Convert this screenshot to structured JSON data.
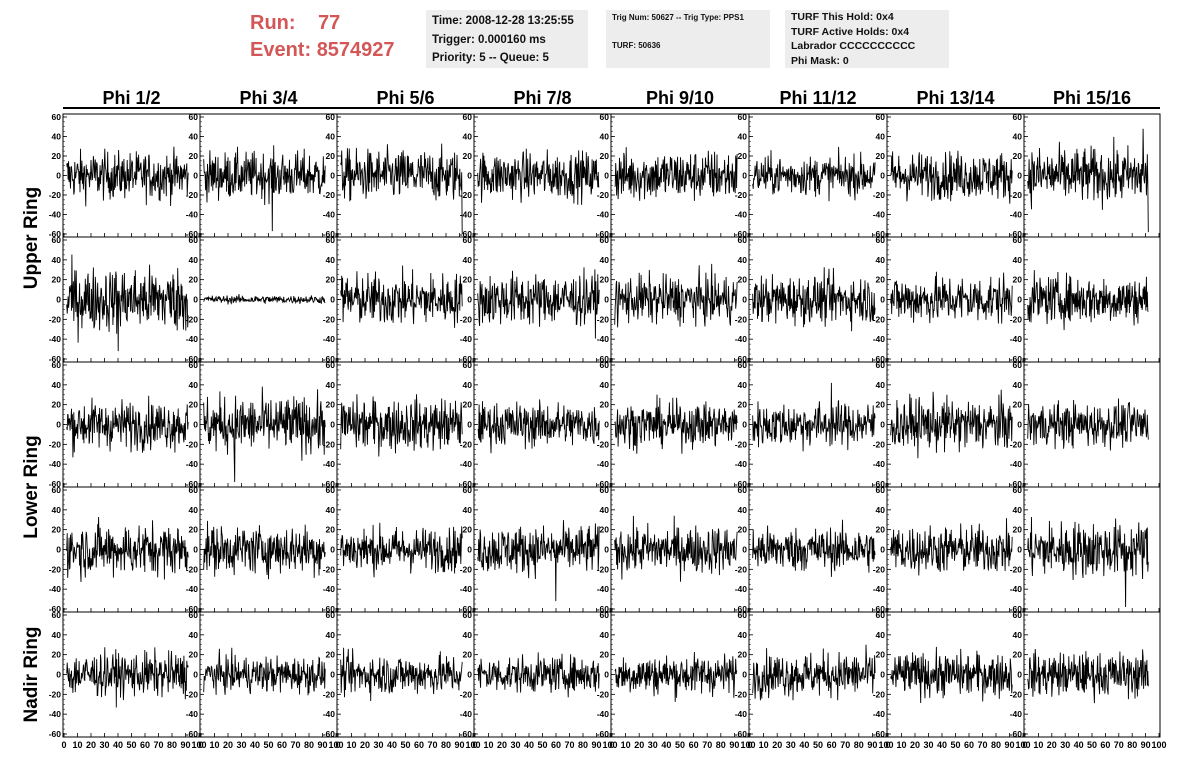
{
  "header": {
    "run_label": "Run:",
    "run_value": "77",
    "event_label": "Event:",
    "event_value": "8574927",
    "time": "Time: 2008-12-28 13:25:55",
    "trigger": "Trigger: 0.000160 ms",
    "priority": "Priority: 5 -- Queue: 5",
    "trig_num": "Trig Num: 50627 -- Trig Type: PPS1",
    "turf": "TURF: 50636",
    "turf_hold": "TURF This Hold: 0x4",
    "turf_active": "TURF Active Holds: 0x4",
    "labrador": "Labrador CCCCCCCCCC",
    "phi_mask": "Phi Mask: 0"
  },
  "colors": {
    "header_red": "#d45757",
    "info_bg": "#ededed",
    "trace": "#000000"
  },
  "chart_data": {
    "type": "line",
    "title": "",
    "columns": [
      "Phi 1/2",
      "Phi 3/4",
      "Phi 5/6",
      "Phi 7/8",
      "Phi 9/10",
      "Phi 11/12",
      "Phi 13/14",
      "Phi 15/16"
    ],
    "row_groups": [
      {
        "label": "Upper Ring",
        "rows": [
          0,
          1
        ]
      },
      {
        "label": "Lower Ring",
        "rows": [
          2,
          3
        ]
      },
      {
        "label": "Nadir Ring",
        "rows": [
          4
        ]
      }
    ],
    "xlim": [
      0,
      100
    ],
    "ylim": [
      -60,
      60
    ],
    "x_ticks": [
      0,
      10,
      20,
      30,
      40,
      50,
      60,
      70,
      80,
      90,
      100
    ],
    "x_tick_labels": [
      "0",
      "10",
      "20",
      "30",
      "40",
      "50",
      "60",
      "70",
      "80",
      "90",
      "100"
    ],
    "y_ticks": [
      -60,
      -40,
      -20,
      0,
      20,
      40,
      60
    ],
    "y_tick_labels": [
      "-60",
      "-40",
      "-20",
      "0",
      "20",
      "40",
      "60"
    ],
    "samples_per_trace": 256,
    "trace_amplitude_rms": [
      [
        12,
        12,
        13,
        12,
        13,
        10,
        12,
        14
      ],
      [
        16,
        2,
        13,
        13,
        12,
        12,
        12,
        12
      ],
      [
        12,
        14,
        13,
        11,
        11,
        11,
        13,
        11
      ],
      [
        13,
        12,
        11,
        12,
        12,
        11,
        12,
        14
      ],
      [
        11,
        9,
        10,
        9,
        10,
        11,
        11,
        11
      ]
    ],
    "spikes": [
      {
        "row": 0,
        "col": 1,
        "x": 53,
        "y": -57
      },
      {
        "row": 0,
        "col": 2,
        "x": 95,
        "y": -60
      },
      {
        "row": 0,
        "col": 7,
        "x": 93,
        "y": -58
      },
      {
        "row": 0,
        "col": 7,
        "x": 88,
        "y": 48
      },
      {
        "row": 1,
        "col": 0,
        "x": 40,
        "y": -52
      },
      {
        "row": 2,
        "col": 1,
        "x": 25,
        "y": -58
      },
      {
        "row": 2,
        "col": 5,
        "x": 60,
        "y": 42
      },
      {
        "row": 3,
        "col": 3,
        "x": 60,
        "y": -52
      },
      {
        "row": 3,
        "col": 7,
        "x": 75,
        "y": -58
      }
    ]
  }
}
